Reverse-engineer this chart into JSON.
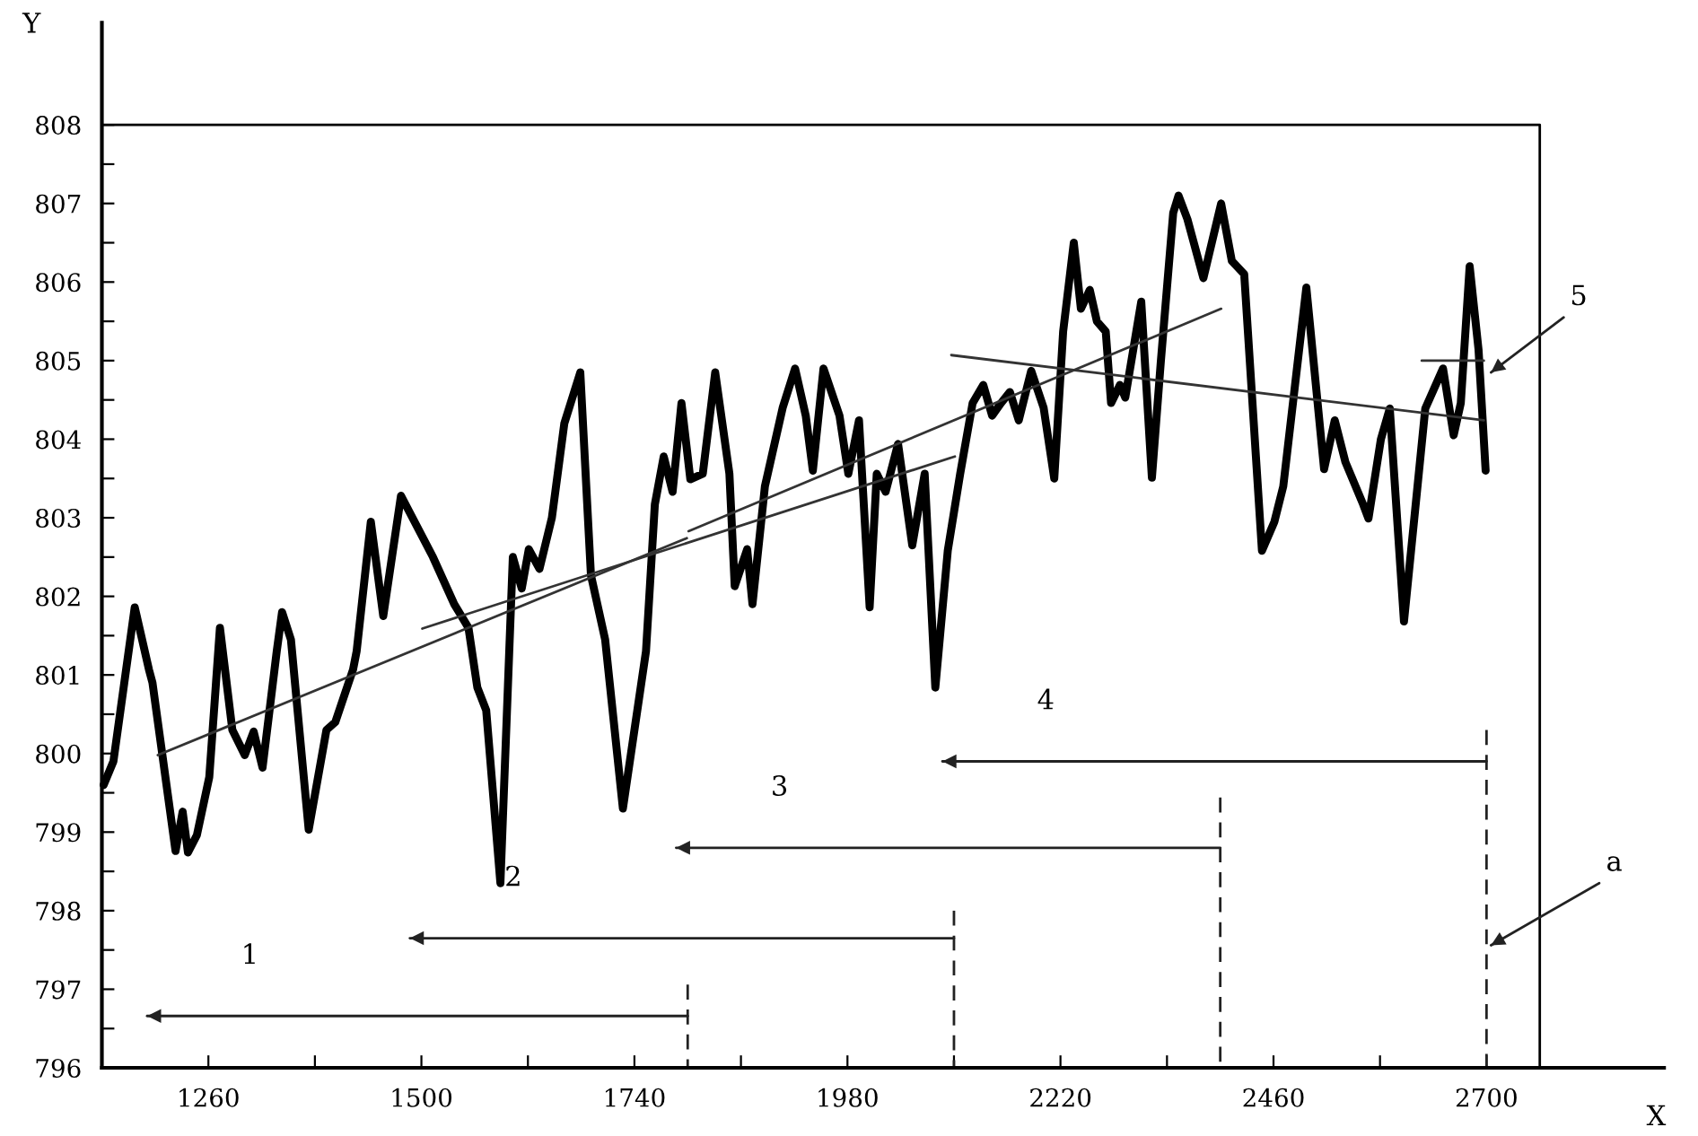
{
  "chart_data": {
    "type": "line",
    "xlabel": "X",
    "ylabel": "Y",
    "xlim": [
      1140,
      2900
    ],
    "ylim": [
      796,
      809.3
    ],
    "xticks": [
      1260,
      {
        "value": 1380,
        "label": null
      },
      1500,
      {
        "value": 1620,
        "label": null
      },
      1740,
      {
        "value": 1860,
        "label": null
      },
      1980,
      {
        "value": 2100,
        "label": null
      },
      2220,
      {
        "value": 2340,
        "label": null
      },
      2460,
      {
        "value": 2580,
        "label": null
      },
      2700
    ],
    "yticks": [
      796,
      {
        "value": 796.5,
        "label": null
      },
      797,
      {
        "value": 797.5,
        "label": null
      },
      798,
      {
        "value": 798.5,
        "label": null
      },
      799,
      {
        "value": 799.5,
        "label": null
      },
      800,
      {
        "value": 800.5,
        "label": null
      },
      801,
      {
        "value": 801.5,
        "label": null
      },
      802,
      {
        "value": 802.5,
        "label": null
      },
      803,
      {
        "value": 803.5,
        "label": null
      },
      804,
      {
        "value": 804.5,
        "label": null
      },
      805,
      {
        "value": 805.5,
        "label": null
      },
      806,
      {
        "value": 806.5,
        "label": null
      },
      807,
      {
        "value": 807.5,
        "label": null
      },
      808
    ],
    "grid": false,
    "series": [
      {
        "color": "#000000",
        "x": [
          1142,
          1153,
          1177,
          1193,
          1197,
          1223,
          1231,
          1237,
          1247,
          1261,
          1273,
          1287,
          1301,
          1311,
          1321,
          1337,
          1343,
          1353,
          1373,
          1393,
          1403,
          1423,
          1427,
          1443,
          1457,
          1477,
          1513,
          1537,
          1553,
          1563,
          1573,
          1589,
          1603,
          1613,
          1621,
          1633,
          1647,
          1661,
          1679,
          1691,
          1707,
          1727,
          1753,
          1763,
          1773,
          1783,
          1793,
          1803,
          1817,
          1831,
          1847,
          1853,
          1867,
          1873,
          1887,
          1907,
          1921,
          1933,
          1941,
          1953,
          1971,
          1981,
          1993,
          2005,
          2013,
          2023,
          2037,
          2053,
          2067,
          2079,
          2093,
          2107,
          2121,
          2133,
          2143,
          2153,
          2163,
          2173,
          2187,
          2201,
          2213,
          2223,
          2235,
          2243,
          2253,
          2261,
          2271,
          2277,
          2287,
          2293,
          2311,
          2323,
          2333,
          2347,
          2353,
          2363,
          2381,
          2401,
          2413,
          2427,
          2447,
          2461,
          2471,
          2497,
          2517,
          2529,
          2541,
          2561,
          2567,
          2581,
          2591,
          2607,
          2631,
          2651,
          2663,
          2671,
          2681,
          2691,
          2699
        ],
        "values": [
          799.6,
          799.9,
          801.86,
          801.07,
          800.9,
          798.76,
          799.26,
          798.74,
          798.96,
          799.7,
          801.6,
          800.3,
          799.98,
          800.28,
          799.82,
          801.3,
          801.8,
          801.45,
          799.03,
          800.3,
          800.4,
          801.07,
          801.3,
          802.95,
          801.75,
          803.28,
          802.5,
          801.9,
          801.6,
          800.84,
          800.55,
          798.35,
          802.5,
          802.1,
          802.6,
          802.35,
          803.0,
          804.2,
          804.85,
          802.27,
          801.45,
          799.3,
          801.3,
          803.17,
          803.78,
          803.33,
          804.46,
          803.49,
          803.56,
          804.85,
          803.56,
          802.13,
          802.6,
          801.9,
          803.4,
          804.4,
          804.9,
          804.3,
          803.6,
          804.9,
          804.3,
          803.56,
          804.24,
          801.86,
          803.56,
          803.33,
          803.94,
          802.65,
          803.56,
          800.84,
          802.58,
          803.56,
          804.46,
          804.69,
          804.3,
          804.46,
          804.6,
          804.24,
          804.87,
          804.4,
          803.5,
          805.37,
          806.5,
          805.66,
          805.9,
          805.5,
          805.37,
          804.46,
          804.69,
          804.53,
          805.75,
          803.51,
          804.98,
          806.88,
          807.1,
          806.8,
          806.05,
          807.0,
          806.27,
          806.1,
          802.58,
          802.95,
          803.4,
          805.93,
          803.62,
          804.24,
          803.71,
          803.17,
          802.99,
          804.0,
          804.39,
          801.68,
          804.39,
          804.9,
          804.05,
          804.46,
          806.2,
          805.14,
          803.6
        ]
      },
      {
        "color": "#000000",
        "x": [
          1140,
          2760,
          2760
        ],
        "values": [
          808,
          808,
          796
        ]
      },
      {
        "color": "#333333",
        "x": [
          1203,
          1799
        ],
        "values": [
          799.98,
          802.74
        ]
      },
      {
        "color": "#333333",
        "x": [
          1501,
          2101
        ],
        "values": [
          801.59,
          803.78
        ]
      },
      {
        "color": "#333333",
        "x": [
          1801,
          2401
        ],
        "values": [
          802.83,
          805.66
        ]
      },
      {
        "color": "#333333",
        "x": [
          2097,
          2697
        ],
        "values": [
          805.07,
          804.24
        ]
      },
      {
        "color": "#333333",
        "x": [
          2627,
          2697
        ],
        "values": [
          805.0,
          805.0
        ]
      },
      {
        "color": "#222222",
        "line_style": "dashed",
        "x": [
          1800,
          1800
        ],
        "values": [
          797.06,
          796
        ]
      },
      {
        "color": "#222222",
        "line_style": "dashed",
        "x": [
          2100,
          2100
        ],
        "values": [
          798.0,
          796
        ]
      },
      {
        "color": "#222222",
        "line_style": "dashed",
        "x": [
          2400,
          2400
        ],
        "values": [
          799.44,
          796
        ]
      },
      {
        "color": "#222222",
        "line_style": "dashed",
        "x": [
          2700,
          2700
        ],
        "values": [
          800.3,
          796
        ]
      },
      {
        "color": "#222222",
        "x": [
          1800,
          1191
        ],
        "values": [
          796.66,
          796.66
        ]
      },
      {
        "color": "#222222",
        "x": [
          2100,
          1487
        ],
        "values": [
          797.65,
          797.65
        ]
      },
      {
        "color": "#222222",
        "x": [
          2400,
          1787
        ],
        "values": [
          798.8,
          798.8
        ]
      },
      {
        "color": "#222222",
        "x": [
          2700,
          2087
        ],
        "values": [
          799.9,
          799.9
        ]
      },
      {
        "color": "#222222",
        "x": [
          2787,
          2705
        ],
        "values": [
          805.55,
          804.85
        ]
      },
      {
        "color": "#222222",
        "x": [
          2827,
          2705
        ],
        "values": [
          798.35,
          797.56
        ]
      }
    ],
    "annotations": [
      "1",
      "2",
      "3",
      "4",
      "5",
      "a"
    ]
  }
}
